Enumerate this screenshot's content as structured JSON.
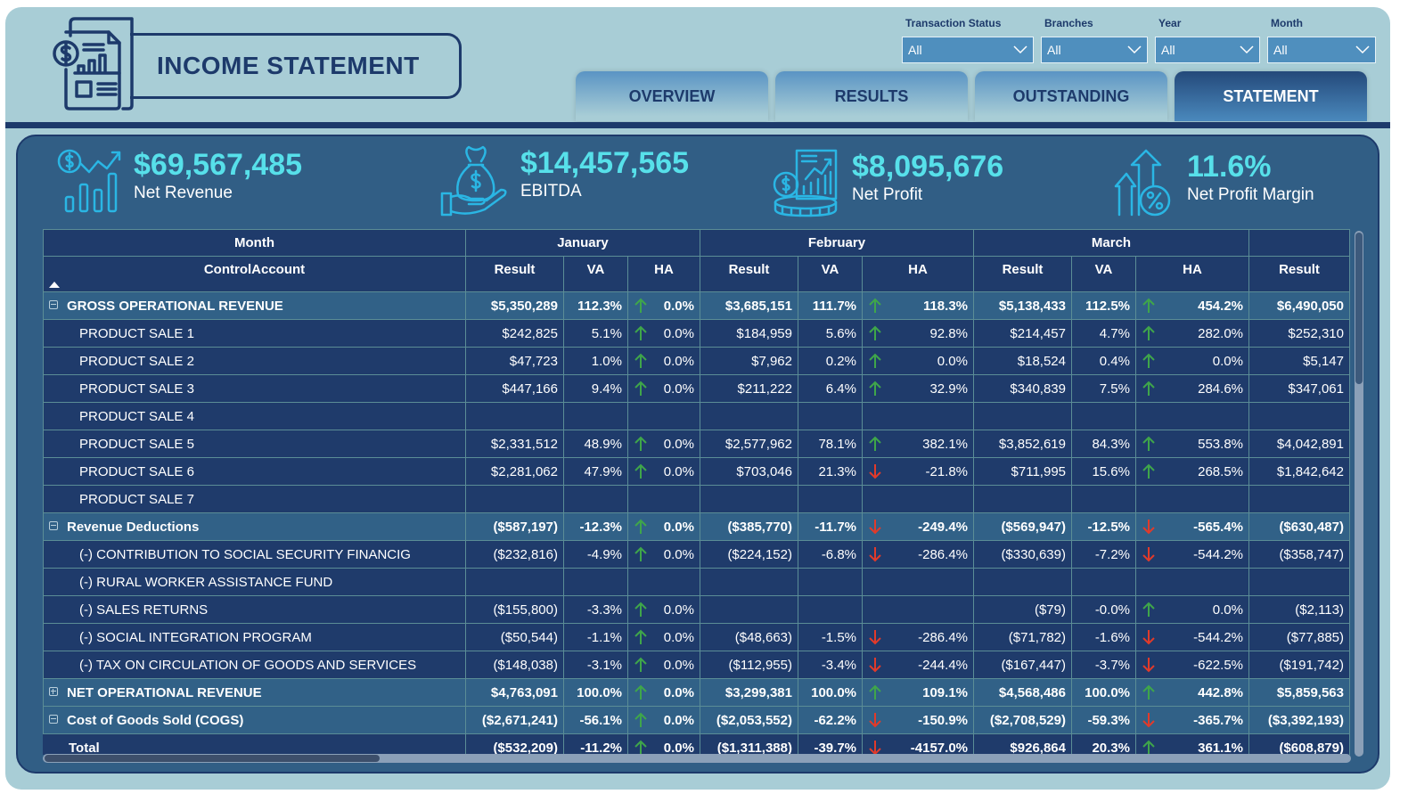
{
  "header": {
    "title": "INCOME STATEMENT",
    "logo_icon": "financial-report-icon"
  },
  "filters": [
    {
      "label": "Transaction Status",
      "value": "All"
    },
    {
      "label": "Branches",
      "value": "All"
    },
    {
      "label": "Year",
      "value": "All"
    },
    {
      "label": "Month",
      "value": "All"
    }
  ],
  "tabs": [
    {
      "label": "OVERVIEW",
      "active": false
    },
    {
      "label": "RESULTS",
      "active": false
    },
    {
      "label": "OUTSTANDING",
      "active": false
    },
    {
      "label": "STATEMENT",
      "active": true
    }
  ],
  "kpis": [
    {
      "value": "$69,567,485",
      "label": "Net Revenue",
      "icon": "revenue-chart-icon"
    },
    {
      "value": "$14,457,565",
      "label": "EBITDA",
      "icon": "money-bag-hand-icon"
    },
    {
      "value": "$8,095,676",
      "label": "Net Profit",
      "icon": "profit-report-coins-icon"
    },
    {
      "value": "11.6%",
      "label": "Net Profit Margin",
      "icon": "percent-growth-icon"
    }
  ],
  "colors": {
    "accent_cyan": "#57e0ea",
    "arrow_up": "#3fa64a",
    "arrow_down": "#e23a2a",
    "header_navy": "#1d3a6b",
    "panel_blue": "#315e85"
  },
  "table": {
    "row_header_top": "Month",
    "row_header": "ControlAccount",
    "months": [
      "January",
      "February",
      "March",
      ""
    ],
    "subcolumns": [
      "Result",
      "VA",
      "HA"
    ],
    "last_subcolumn": "Result",
    "rows": [
      {
        "type": "group",
        "expander": "minus",
        "name": "GROSS OPERATIONAL REVENUE",
        "cells": [
          [
            "$5,350,289",
            "112.3%",
            "up",
            "0.0%"
          ],
          [
            "$3,685,151",
            "111.7%",
            "up",
            "118.3%"
          ],
          [
            "$5,138,433",
            "112.5%",
            "up",
            "454.2%"
          ]
        ],
        "last": "$6,490,050"
      },
      {
        "type": "child",
        "name": "PRODUCT SALE 1",
        "cells": [
          [
            "$242,825",
            "5.1%",
            "up",
            "0.0%"
          ],
          [
            "$184,959",
            "5.6%",
            "up",
            "92.8%"
          ],
          [
            "$214,457",
            "4.7%",
            "up",
            "282.0%"
          ]
        ],
        "last": "$252,310"
      },
      {
        "type": "child",
        "name": "PRODUCT SALE 2",
        "cells": [
          [
            "$47,723",
            "1.0%",
            "up",
            "0.0%"
          ],
          [
            "$7,962",
            "0.2%",
            "up",
            "0.0%"
          ],
          [
            "$18,524",
            "0.4%",
            "up",
            "0.0%"
          ]
        ],
        "last": "$5,147"
      },
      {
        "type": "child",
        "name": "PRODUCT SALE 3",
        "cells": [
          [
            "$447,166",
            "9.4%",
            "up",
            "0.0%"
          ],
          [
            "$211,222",
            "6.4%",
            "up",
            "32.9%"
          ],
          [
            "$340,839",
            "7.5%",
            "up",
            "284.6%"
          ]
        ],
        "last": "$347,061"
      },
      {
        "type": "child",
        "name": "PRODUCT SALE 4",
        "cells": [
          [
            "",
            "",
            "",
            ""
          ],
          [
            "",
            "",
            "",
            ""
          ],
          [
            "",
            "",
            "",
            ""
          ]
        ],
        "last": ""
      },
      {
        "type": "child",
        "name": "PRODUCT SALE 5",
        "cells": [
          [
            "$2,331,512",
            "48.9%",
            "up",
            "0.0%"
          ],
          [
            "$2,577,962",
            "78.1%",
            "up",
            "382.1%"
          ],
          [
            "$3,852,619",
            "84.3%",
            "up",
            "553.8%"
          ]
        ],
        "last": "$4,042,891"
      },
      {
        "type": "child",
        "name": "PRODUCT SALE 6",
        "cells": [
          [
            "$2,281,062",
            "47.9%",
            "up",
            "0.0%"
          ],
          [
            "$703,046",
            "21.3%",
            "down",
            "-21.8%"
          ],
          [
            "$711,995",
            "15.6%",
            "up",
            "268.5%"
          ]
        ],
        "last": "$1,842,642"
      },
      {
        "type": "child",
        "name": "PRODUCT SALE 7",
        "cells": [
          [
            "",
            "",
            "",
            ""
          ],
          [
            "",
            "",
            "",
            ""
          ],
          [
            "",
            "",
            "",
            ""
          ]
        ],
        "last": ""
      },
      {
        "type": "group",
        "expander": "minus",
        "name": "Revenue Deductions",
        "cells": [
          [
            "($587,197)",
            "-12.3%",
            "up",
            "0.0%"
          ],
          [
            "($385,770)",
            "-11.7%",
            "down",
            "-249.4%"
          ],
          [
            "($569,947)",
            "-12.5%",
            "down",
            "-565.4%"
          ]
        ],
        "last": "($630,487)"
      },
      {
        "type": "child",
        "name": "(-) CONTRIBUTION TO SOCIAL SECURITY FINANCIG",
        "cells": [
          [
            "($232,816)",
            "-4.9%",
            "up",
            "0.0%"
          ],
          [
            "($224,152)",
            "-6.8%",
            "down",
            "-286.4%"
          ],
          [
            "($330,639)",
            "-7.2%",
            "down",
            "-544.2%"
          ]
        ],
        "last": "($358,747)"
      },
      {
        "type": "child",
        "name": "(-) RURAL WORKER ASSISTANCE FUND",
        "cells": [
          [
            "",
            "",
            "",
            ""
          ],
          [
            "",
            "",
            "",
            ""
          ],
          [
            "",
            "",
            "",
            ""
          ]
        ],
        "last": ""
      },
      {
        "type": "child",
        "name": "(-) SALES RETURNS",
        "cells": [
          [
            "($155,800)",
            "-3.3%",
            "up",
            "0.0%"
          ],
          [
            "",
            "",
            "",
            ""
          ],
          [
            "($79)",
            "-0.0%",
            "up",
            "0.0%"
          ]
        ],
        "last": "($2,113)"
      },
      {
        "type": "child",
        "name": "(-) SOCIAL INTEGRATION PROGRAM",
        "cells": [
          [
            "($50,544)",
            "-1.1%",
            "up",
            "0.0%"
          ],
          [
            "($48,663)",
            "-1.5%",
            "down",
            "-286.4%"
          ],
          [
            "($71,782)",
            "-1.6%",
            "down",
            "-544.2%"
          ]
        ],
        "last": "($77,885)"
      },
      {
        "type": "child",
        "name": "(-) TAX ON CIRCULATION OF GOODS AND SERVICES",
        "cells": [
          [
            "($148,038)",
            "-3.1%",
            "up",
            "0.0%"
          ],
          [
            "($112,955)",
            "-3.4%",
            "down",
            "-244.4%"
          ],
          [
            "($167,447)",
            "-3.7%",
            "down",
            "-622.5%"
          ]
        ],
        "last": "($191,742)"
      },
      {
        "type": "group",
        "expander": "plus",
        "name": "NET OPERATIONAL REVENUE",
        "cells": [
          [
            "$4,763,091",
            "100.0%",
            "up",
            "0.0%"
          ],
          [
            "$3,299,381",
            "100.0%",
            "up",
            "109.1%"
          ],
          [
            "$4,568,486",
            "100.0%",
            "up",
            "442.8%"
          ]
        ],
        "last": "$5,859,563"
      },
      {
        "type": "group",
        "expander": "minus",
        "name": "Cost of Goods Sold (COGS)",
        "cells": [
          [
            "($2,671,241)",
            "-56.1%",
            "up",
            "0.0%"
          ],
          [
            "($2,053,552)",
            "-62.2%",
            "down",
            "-150.9%"
          ],
          [
            "($2,708,529)",
            "-59.3%",
            "down",
            "-365.7%"
          ]
        ],
        "last": "($3,392,193)"
      },
      {
        "type": "total",
        "name": "Total",
        "cells": [
          [
            "($532,209)",
            "-11.2%",
            "up",
            "0.0%"
          ],
          [
            "($1,311,388)",
            "-39.7%",
            "down",
            "-4157.0%"
          ],
          [
            "$926,864",
            "20.3%",
            "up",
            "361.1%"
          ]
        ],
        "last": "($608,879)"
      }
    ]
  }
}
